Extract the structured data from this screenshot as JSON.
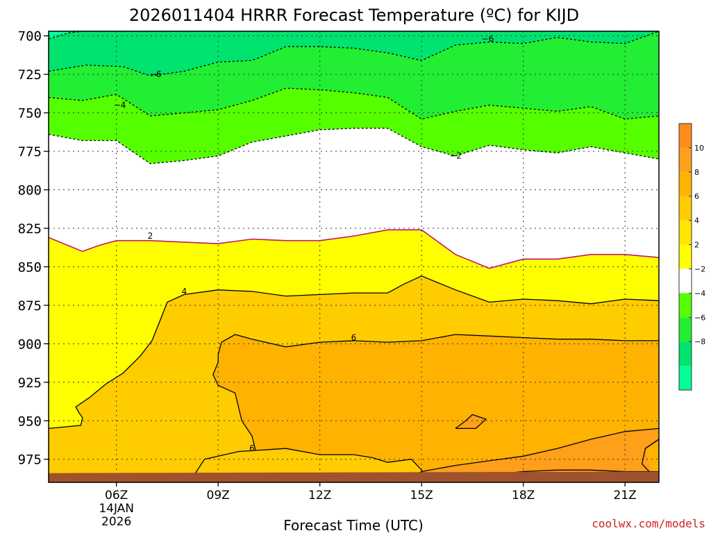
{
  "chart_data": {
    "type": "heatmap",
    "title": "2026011404 HRRR Forecast Temperature (ºC) for KIJD",
    "xlabel": "Forecast Time (UTC)",
    "credit": "coolwx.com/models",
    "x_ticks": [
      {
        "hour": 6,
        "label": "06Z",
        "sub": [
          "14JAN",
          "2026"
        ]
      },
      {
        "hour": 9,
        "label": "09Z"
      },
      {
        "hour": 12,
        "label": "12Z"
      },
      {
        "hour": 15,
        "label": "15Z"
      },
      {
        "hour": 18,
        "label": "18Z"
      },
      {
        "hour": 21,
        "label": "21Z"
      }
    ],
    "y_ticks": [
      700,
      725,
      750,
      775,
      800,
      825,
      850,
      875,
      900,
      925,
      950,
      975
    ],
    "xlim": [
      4,
      22
    ],
    "ylim": [
      697,
      990
    ],
    "colorbar_labels": [
      "10",
      "8",
      "6",
      "4",
      "2",
      "−2",
      "−4",
      "−6",
      "−8"
    ],
    "colorbar": [
      {
        "level": "above 10",
        "color": "#ff8c1a"
      },
      {
        "level": "8 to 10",
        "color": "#ff9f1a"
      },
      {
        "level": "6 to 8",
        "color": "#ffb300"
      },
      {
        "level": "4 to 6",
        "color": "#ffcc00"
      },
      {
        "level": "2 to 4",
        "color": "#ffe600"
      },
      {
        "level": "0 to 2",
        "color": "#ffff00"
      },
      {
        "level": "-2 to 0",
        "color": "#ffffff"
      },
      {
        "level": "-4 to -2",
        "color": "#55ff00"
      },
      {
        "level": "-6 to -4",
        "color": "#22ee33"
      },
      {
        "level": "-8 to -6",
        "color": "#00e36e"
      },
      {
        "level": "below -8",
        "color": "#00ff99"
      }
    ],
    "contour_labels": [
      {
        "text": "−6",
        "hour": 16.95,
        "pressure": 702
      },
      {
        "text": "−6",
        "hour": 7.15,
        "pressure": 725
      },
      {
        "text": "−4",
        "hour": 6.1,
        "pressure": 745
      },
      {
        "text": "−2",
        "hour": 16.0,
        "pressure": 778
      },
      {
        "text": "2",
        "hour": 7.0,
        "pressure": 830
      },
      {
        "text": "4",
        "hour": 8.0,
        "pressure": 866
      },
      {
        "text": "6",
        "hour": 13.0,
        "pressure": 896
      },
      {
        "text": "6",
        "hour": 10.0,
        "pressure": 968
      }
    ],
    "contours": {
      "m6": [
        [
          4.0,
          702
        ],
        [
          4.6,
          698
        ],
        [
          5.0,
          697
        ],
        [
          22.0,
          697
        ]
      ],
      "m4": [
        [
          4.0,
          723
        ],
        [
          5.1,
          719
        ],
        [
          6.2,
          720
        ],
        [
          7.0,
          726
        ],
        [
          8.0,
          723
        ],
        [
          9.0,
          717
        ],
        [
          10.0,
          716
        ],
        [
          11.0,
          707
        ],
        [
          12.0,
          707
        ],
        [
          13.0,
          708
        ],
        [
          14.0,
          711
        ],
        [
          15.0,
          716
        ],
        [
          16.0,
          706
        ],
        [
          17.0,
          704
        ],
        [
          18.0,
          705
        ],
        [
          19.0,
          701
        ],
        [
          20.0,
          704
        ],
        [
          21.0,
          705
        ],
        [
          22.0,
          697
        ]
      ],
      "m2": [
        [
          4.0,
          740
        ],
        [
          5.0,
          742
        ],
        [
          6.0,
          738
        ],
        [
          7.0,
          752
        ],
        [
          8.0,
          750
        ],
        [
          9.0,
          748
        ],
        [
          10.0,
          742
        ],
        [
          11.0,
          734
        ],
        [
          12.0,
          735
        ],
        [
          13.0,
          737
        ],
        [
          14.0,
          740
        ],
        [
          15.0,
          754
        ],
        [
          16.0,
          749
        ],
        [
          17.0,
          745
        ],
        [
          18.0,
          747
        ],
        [
          19.0,
          749
        ],
        [
          20.0,
          746
        ],
        [
          21.0,
          754
        ],
        [
          22.0,
          752
        ]
      ],
      "z0": [
        [
          4.0,
          764
        ],
        [
          5.0,
          768
        ],
        [
          6.0,
          768
        ],
        [
          7.0,
          783
        ],
        [
          8.0,
          781
        ],
        [
          9.0,
          778
        ],
        [
          10.0,
          769
        ],
        [
          11.0,
          765
        ],
        [
          12.0,
          761
        ],
        [
          13.0,
          760
        ],
        [
          14.0,
          760
        ],
        [
          15.0,
          772
        ],
        [
          16.0,
          778
        ],
        [
          17.0,
          771
        ],
        [
          18.0,
          774
        ],
        [
          19.0,
          776
        ],
        [
          20.0,
          772
        ],
        [
          21.0,
          776
        ],
        [
          22.0,
          780
        ]
      ],
      "p2": [
        [
          4.0,
          831
        ],
        [
          5.0,
          840
        ],
        [
          5.5,
          836
        ],
        [
          6.0,
          833
        ],
        [
          7.0,
          833
        ],
        [
          8.0,
          834
        ],
        [
          9.0,
          835
        ],
        [
          10.0,
          832
        ],
        [
          11.0,
          833
        ],
        [
          12.0,
          833
        ],
        [
          13.0,
          830
        ],
        [
          14.0,
          826
        ],
        [
          15.0,
          826
        ],
        [
          16.0,
          842
        ],
        [
          17.0,
          851
        ],
        [
          18.0,
          845
        ],
        [
          19.0,
          845
        ],
        [
          20.0,
          842
        ],
        [
          21.0,
          842
        ],
        [
          22.0,
          844
        ]
      ],
      "p4": [
        [
          4.0,
          955
        ],
        [
          4.95,
          953
        ],
        [
          5.0,
          948
        ],
        [
          4.9,
          945
        ],
        [
          4.8,
          941
        ],
        [
          5.2,
          935
        ],
        [
          5.7,
          926
        ],
        [
          6.2,
          919
        ],
        [
          6.7,
          908
        ],
        [
          7.05,
          898
        ],
        [
          7.25,
          887
        ],
        [
          7.5,
          873
        ],
        [
          8.0,
          868
        ],
        [
          9.0,
          865
        ],
        [
          10.0,
          866
        ],
        [
          11.0,
          869
        ],
        [
          12.0,
          868
        ],
        [
          13.0,
          867
        ],
        [
          14.0,
          867
        ],
        [
          14.5,
          861
        ],
        [
          15.0,
          856
        ],
        [
          16.0,
          865
        ],
        [
          17.0,
          873
        ],
        [
          18.0,
          871
        ],
        [
          19.0,
          872
        ],
        [
          20.0,
          874
        ],
        [
          21.0,
          871
        ],
        [
          22.0,
          872
        ]
      ],
      "p6": [
        [
          13.55,
          974
        ],
        [
          14.0,
          977
        ],
        [
          14.7,
          975
        ],
        [
          15.0,
          982
        ],
        [
          15.1,
          988
        ],
        [
          22.0,
          988
        ],
        [
          22.0,
          962
        ],
        [
          21.6,
          968
        ],
        [
          21.5,
          978
        ],
        [
          21.8,
          985
        ],
        [
          22.0,
          987
        ]
      ],
      "p6b": [
        [
          6.0,
          990
        ],
        [
          8.0,
          990
        ],
        [
          8.3,
          985
        ],
        [
          8.6,
          975
        ],
        [
          9.6,
          970
        ],
        [
          11.0,
          968
        ],
        [
          12.0,
          972
        ],
        [
          13.0,
          972
        ],
        [
          13.55,
          974
        ]
      ],
      "p6c": [
        [
          9.0,
          907
        ],
        [
          9.1,
          899
        ],
        [
          9.5,
          894
        ],
        [
          10.0,
          897
        ],
        [
          11.0,
          902
        ],
        [
          12.0,
          899
        ],
        [
          13.0,
          898
        ],
        [
          14.0,
          899
        ],
        [
          15.0,
          898
        ],
        [
          16.0,
          894
        ],
        [
          17.0,
          895
        ],
        [
          18.0,
          896
        ],
        [
          19.0,
          897
        ],
        [
          20.0,
          897
        ],
        [
          21.0,
          898
        ],
        [
          22.0,
          898
        ]
      ],
      "p6d": [
        [
          9.0,
          907
        ],
        [
          9.0,
          912
        ],
        [
          8.85,
          920
        ],
        [
          9.0,
          927
        ],
        [
          9.5,
          932
        ],
        [
          9.7,
          950
        ],
        [
          10.0,
          960
        ],
        [
          10.1,
          969
        ]
      ]
    },
    "surface_color": "#a0522d"
  }
}
